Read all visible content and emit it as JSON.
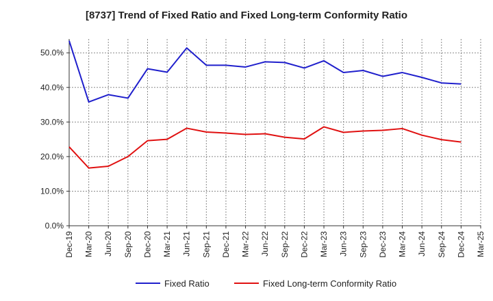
{
  "chart_data": {
    "type": "line",
    "title": "[8737]  Trend of Fixed Ratio and Fixed Long-term Conformity Ratio",
    "xlabel": "",
    "ylabel": "",
    "categories": [
      "Dec-19",
      "Mar-20",
      "Jun-20",
      "Sep-20",
      "Dec-20",
      "Mar-21",
      "Jun-21",
      "Sep-21",
      "Dec-21",
      "Mar-22",
      "Jun-22",
      "Sep-22",
      "Dec-22",
      "Mar-23",
      "Jun-23",
      "Sep-23",
      "Dec-23",
      "Mar-24",
      "Jun-24",
      "Sep-24",
      "Dec-24",
      "Mar-25"
    ],
    "ylim": [
      0,
      54
    ],
    "yticks": [
      0,
      10,
      20,
      30,
      40,
      50
    ],
    "ytick_labels": [
      "0.0%",
      "10.0%",
      "20.0%",
      "30.0%",
      "40.0%",
      "50.0%"
    ],
    "grid": true,
    "legend_position": "bottom",
    "series": [
      {
        "name": "Fixed Ratio",
        "color": "#1f1fcc",
        "values": [
          53.5,
          35.8,
          37.9,
          36.9,
          45.4,
          44.4,
          51.4,
          46.4,
          46.4,
          45.9,
          47.4,
          47.2,
          45.6,
          47.7,
          44.3,
          44.9,
          43.2,
          44.3,
          42.9,
          41.3,
          41.0,
          null
        ]
      },
      {
        "name": "Fixed Long-term Conformity Ratio",
        "color": "#e01010",
        "values": [
          22.8,
          16.7,
          17.2,
          20.0,
          24.6,
          25.0,
          28.2,
          27.1,
          26.8,
          26.4,
          26.6,
          25.6,
          25.1,
          28.6,
          27.0,
          27.4,
          27.6,
          28.1,
          26.2,
          24.9,
          24.2,
          null
        ]
      }
    ]
  }
}
